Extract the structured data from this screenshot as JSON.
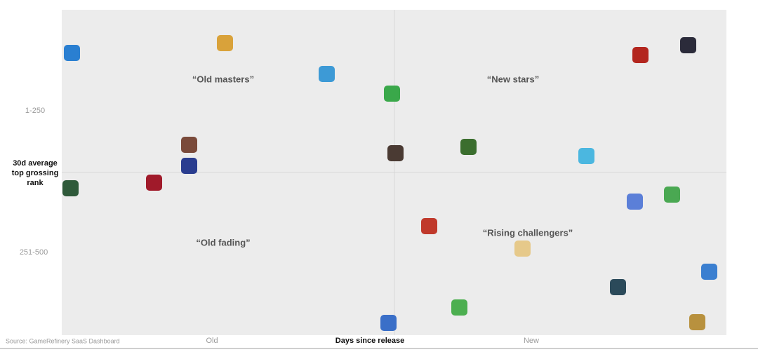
{
  "axes": {
    "y_title": [
      "30d average",
      "top grossing",
      "rank"
    ],
    "y_labels": [
      "1-250",
      "251-500"
    ],
    "x_labels": [
      "Old",
      "New"
    ],
    "x_title": "Days since release"
  },
  "quadrants": [
    "“Old masters”",
    "“New stars”",
    "“Old fading”",
    "“Rising challengers”"
  ],
  "source": "Source: GameRefinery SaaS Dashboard"
}
